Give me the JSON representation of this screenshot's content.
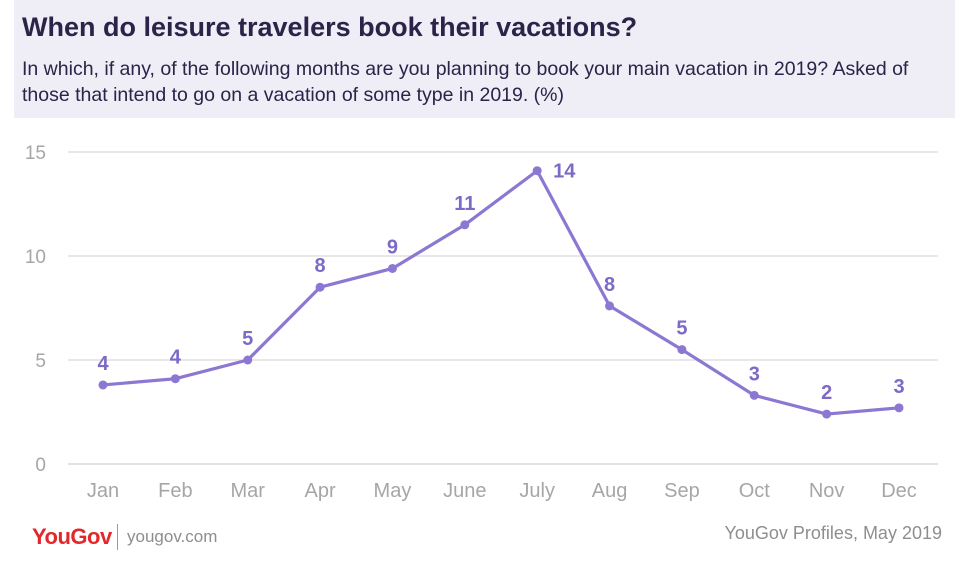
{
  "header": {
    "title": "When do leisure travelers book their vacations?",
    "subtitle": "In which, if any, of the following months are you planning to book your main vacation in 2019? Asked of those that intend to go on a vacation of some type in 2019. (%)"
  },
  "footer": {
    "logo": "YouGov",
    "url": "yougov.com",
    "source": "YouGov Profiles, May 2019"
  },
  "colors": {
    "line": "#8c78d2",
    "label": "#7d69c6",
    "grid": "#d9d9d9",
    "tick": "#a6a6a6",
    "header_bg": "#efedf6",
    "title": "#2b2348",
    "logo": "#e3282b"
  },
  "chart_data": {
    "type": "line",
    "categories": [
      "Jan",
      "Feb",
      "Mar",
      "Apr",
      "May",
      "June",
      "July",
      "Aug",
      "Sep",
      "Oct",
      "Nov",
      "Dec"
    ],
    "series": [
      {
        "values": [
          3.8,
          4.1,
          5.0,
          8.5,
          9.4,
          11.5,
          14.1,
          7.6,
          5.5,
          3.3,
          2.4,
          2.7
        ],
        "labels": [
          "4",
          "4",
          "5",
          "8",
          "9",
          "11",
          "14",
          "8",
          "5",
          "3",
          "2",
          "3"
        ]
      }
    ],
    "ylim": [
      0,
      15
    ],
    "yticks": [
      0,
      5,
      10,
      15
    ],
    "grid": true,
    "legend": "none"
  }
}
